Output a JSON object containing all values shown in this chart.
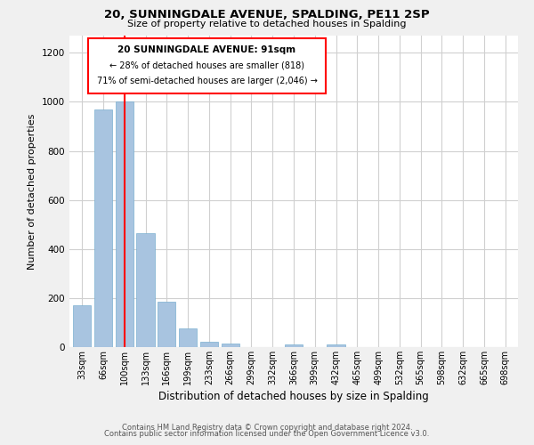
{
  "title1": "20, SUNNINGDALE AVENUE, SPALDING, PE11 2SP",
  "title2": "Size of property relative to detached houses in Spalding",
  "xlabel": "Distribution of detached houses by size in Spalding",
  "ylabel": "Number of detached properties",
  "bar_labels": [
    "33sqm",
    "66sqm",
    "100sqm",
    "133sqm",
    "166sqm",
    "199sqm",
    "233sqm",
    "266sqm",
    "299sqm",
    "332sqm",
    "366sqm",
    "399sqm",
    "432sqm",
    "465sqm",
    "499sqm",
    "532sqm",
    "565sqm",
    "598sqm",
    "632sqm",
    "665sqm",
    "698sqm"
  ],
  "bar_heights": [
    170,
    970,
    1000,
    465,
    185,
    75,
    22,
    15,
    0,
    0,
    10,
    0,
    10,
    0,
    0,
    0,
    0,
    0,
    0,
    0,
    0
  ],
  "bar_color": "#a8c4e0",
  "red_line_index": 2,
  "ylim": [
    0,
    1270
  ],
  "yticks": [
    0,
    200,
    400,
    600,
    800,
    1000,
    1200
  ],
  "annotation_line1": "20 SUNNINGDALE AVENUE: 91sqm",
  "annotation_line2": "← 28% of detached houses are smaller (818)",
  "annotation_line3": "71% of semi-detached houses are larger (2,046) →",
  "footer1": "Contains HM Land Registry data © Crown copyright and database right 2024.",
  "footer2": "Contains public sector information licensed under the Open Government Licence v3.0.",
  "bg_color": "#f0f0f0",
  "plot_bg_color": "#ffffff",
  "grid_color": "#d0d0d0"
}
